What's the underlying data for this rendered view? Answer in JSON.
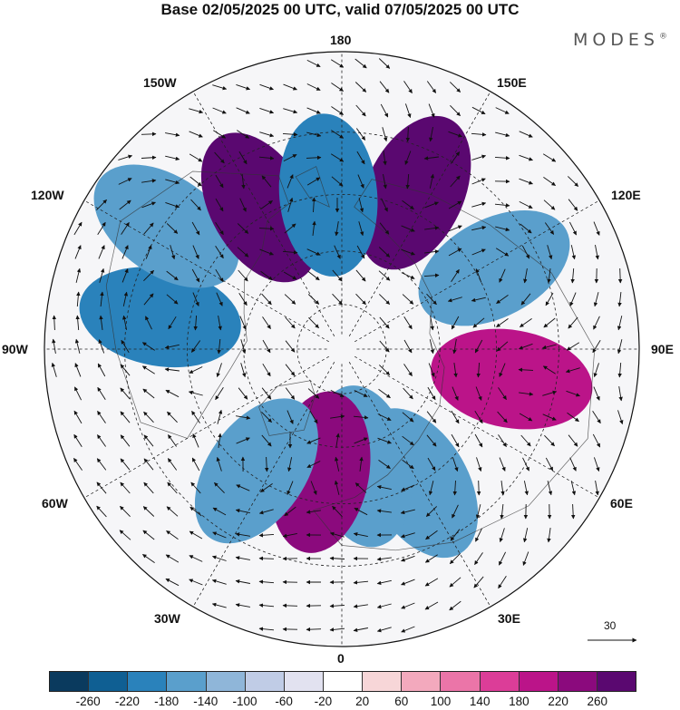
{
  "header": {
    "title": "Base 02/05/2025 00 UTC, valid 07/05/2025 00 UTC",
    "brand": "MODES",
    "brand_mark": "®"
  },
  "map": {
    "projection": "north-polar-stereographic",
    "longitude_labels": [
      {
        "id": "180",
        "text": "180",
        "lon": 180
      },
      {
        "id": "150e",
        "text": "150E",
        "lon": 150
      },
      {
        "id": "120e",
        "text": "120E",
        "lon": 120
      },
      {
        "id": "90e",
        "text": "90E",
        "lon": 90
      },
      {
        "id": "60e",
        "text": "60E",
        "lon": 60
      },
      {
        "id": "30e",
        "text": "30E",
        "lon": 30
      },
      {
        "id": "0",
        "text": "0",
        "lon": 0
      },
      {
        "id": "30w",
        "text": "30W",
        "lon": -30
      },
      {
        "id": "60w",
        "text": "60W",
        "lon": -60
      },
      {
        "id": "90w",
        "text": "90W",
        "lon": -90
      },
      {
        "id": "120w",
        "text": "120W",
        "lon": -120
      },
      {
        "id": "150w",
        "text": "150W",
        "lon": -150
      }
    ],
    "anomaly_centers": [
      {
        "lon": 155,
        "lat_radius": 0.58,
        "level": 260
      },
      {
        "lon": 118,
        "lat_radius": 0.58,
        "level": -180
      },
      {
        "lon": 80,
        "lat_radius": 0.58,
        "level": 180
      },
      {
        "lon": 30,
        "lat_radius": 0.52,
        "level": -180
      },
      {
        "lon": 10,
        "lat_radius": 0.4,
        "level": -160
      },
      {
        "lon": -10,
        "lat_radius": 0.42,
        "level": 220
      },
      {
        "lon": -35,
        "lat_radius": 0.5,
        "level": -160
      },
      {
        "lon": -100,
        "lat_radius": 0.62,
        "level": -220
      },
      {
        "lon": -125,
        "lat_radius": 0.72,
        "level": -160
      },
      {
        "lon": -150,
        "lat_radius": 0.55,
        "level": 260
      },
      {
        "lon": -175,
        "lat_radius": 0.52,
        "level": -200
      }
    ],
    "reference_vector": {
      "value": "30"
    }
  },
  "colorbar": {
    "labels": [
      "-260",
      "-220",
      "-180",
      "-140",
      "-100",
      "-60",
      "-20",
      "20",
      "60",
      "100",
      "140",
      "180",
      "220",
      "260"
    ],
    "colors": [
      "#0a3a5e",
      "#0f5f93",
      "#2a82bb",
      "#5a9fcc",
      "#8fb6d9",
      "#c0cce6",
      "#e2e2f0",
      "#ffffff",
      "#f7d6d8",
      "#f3a9bd",
      "#eb75a8",
      "#dc3d98",
      "#bb1489",
      "#8b0a7d",
      "#5a0870"
    ]
  }
}
